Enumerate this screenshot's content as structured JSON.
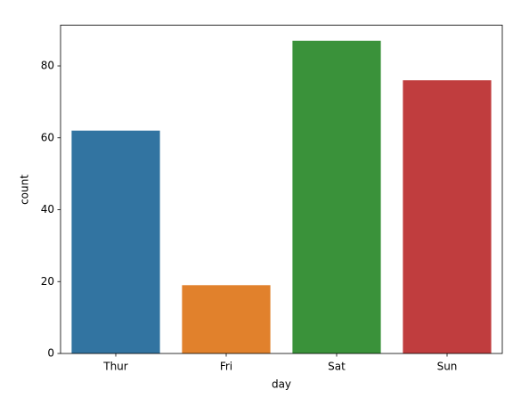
{
  "chart_data": {
    "type": "bar",
    "categories": [
      "Thur",
      "Fri",
      "Sat",
      "Sun"
    ],
    "values": [
      62,
      19,
      87,
      76
    ],
    "colors": [
      "#3274a1",
      "#e1812c",
      "#3a923a",
      "#c03d3e"
    ],
    "xlabel": "day",
    "ylabel": "count",
    "ylim": [
      0,
      91.35
    ],
    "yticks": [
      0,
      20,
      40,
      60,
      80
    ],
    "grid": false
  }
}
